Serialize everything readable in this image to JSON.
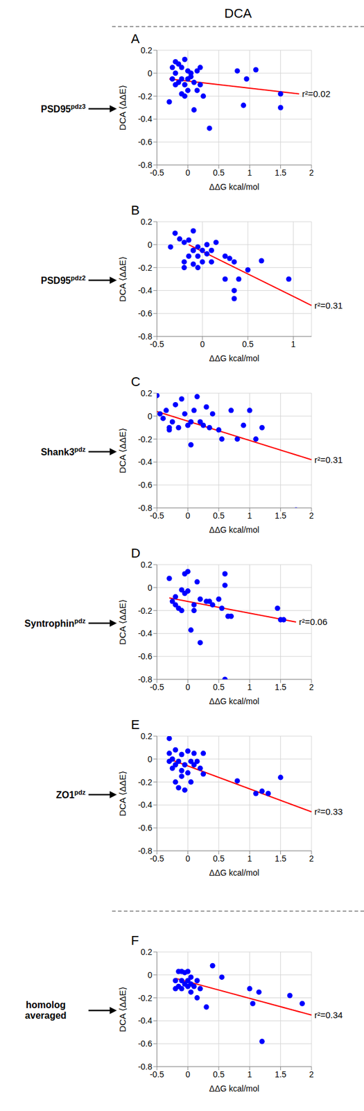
{
  "header": "DCA",
  "chart_data": [
    {
      "type": "scatter",
      "panel": "A",
      "row_label": "PSD95",
      "row_label_sup": "pdz3",
      "x_label": "ΔΔG kcal/mol",
      "y_label": "DCA ⟨ΔΔE⟩",
      "xlim": [
        -0.5,
        2
      ],
      "xticks": [
        -0.5,
        0,
        0.5,
        1,
        1.5,
        2
      ],
      "ylim": [
        -0.8,
        0.2
      ],
      "yticks": [
        -0.8,
        -0.6,
        -0.4,
        -0.2,
        0,
        0.2
      ],
      "grid": true,
      "marker": "circle",
      "color": "#0000ff",
      "x": [
        -0.3,
        -0.25,
        -0.2,
        -0.15,
        -0.1,
        -0.1,
        -0.05,
        0,
        -0.2,
        -0.15,
        -0.05,
        0,
        -0.1,
        0.05,
        0.1,
        0.15,
        0.2,
        0.2,
        0.1,
        0.35,
        0.8,
        0.9,
        0.95,
        1.1,
        1.5,
        1.5,
        -0.25,
        -0.05,
        0,
        0.15,
        0.25,
        -0.2,
        0.05
      ],
      "y": [
        -0.25,
        0.05,
        0,
        0.08,
        0.05,
        -0.05,
        0.12,
        0.02,
        -0.1,
        -0.08,
        -0.1,
        -0.15,
        -0.18,
        -0.03,
        -0.08,
        0.02,
        0.05,
        -0.1,
        -0.32,
        -0.48,
        0.02,
        -0.28,
        -0.05,
        0.03,
        -0.18,
        -0.3,
        -0.05,
        -0.2,
        -0.05,
        -0.15,
        -0.2,
        0.1,
        0
      ],
      "fit": {
        "x": [
          -0.3,
          1.8
        ],
        "y": [
          -0.05,
          -0.18
        ],
        "color": "#ff0000"
      },
      "annotation": "r²=0.02"
    },
    {
      "type": "scatter",
      "panel": "B",
      "row_label": "PSD95",
      "row_label_sup": "pdz2",
      "x_label": "ΔΔG kcal/mol",
      "y_label": "DCA ⟨ΔΔE⟩",
      "xlim": [
        -0.5,
        1.2
      ],
      "xticks": [
        -0.5,
        0,
        0.5,
        1
      ],
      "ylim": [
        -0.8,
        0.2
      ],
      "yticks": [
        -0.8,
        -0.6,
        -0.4,
        -0.2,
        0,
        0.2
      ],
      "grid": true,
      "marker": "circle",
      "color": "#0000ff",
      "x": [
        -0.35,
        -0.3,
        -0.25,
        -0.2,
        -0.15,
        -0.1,
        -0.1,
        -0.15,
        -0.2,
        -0.2,
        -0.1,
        -0.05,
        -0.05,
        0,
        0,
        0.05,
        0.1,
        0.1,
        0.15,
        -0.1,
        0.25,
        0.3,
        0.35,
        0.25,
        0.35,
        0.4,
        0.35,
        0.5,
        0.65,
        0.95,
        -0.05,
        0.05
      ],
      "y": [
        -0.02,
        0.1,
        0.05,
        0.02,
        0.04,
        0.12,
        -0.05,
        -0.1,
        -0.2,
        -0.15,
        -0.17,
        -0.1,
        -0.2,
        -0.05,
        -0.15,
        -0.08,
        -0.05,
        -0.15,
        0.02,
        -0.05,
        -0.1,
        -0.12,
        -0.15,
        -0.3,
        -0.4,
        -0.3,
        -0.47,
        -0.22,
        -0.14,
        -0.3,
        -0.02,
        0
      ],
      "fit": {
        "x": [
          -0.15,
          1.2
        ],
        "y": [
          0,
          -0.53
        ],
        "color": "#ff0000"
      },
      "annotation": "r²=0.31"
    },
    {
      "type": "scatter",
      "panel": "C",
      "row_label": "Shank3",
      "row_label_sup": "pdz",
      "x_label": "ΔΔG kcal/mol",
      "y_label": "DCA ⟨ΔΔE⟩",
      "xlim": [
        -0.5,
        2
      ],
      "xticks": [
        -0.5,
        0,
        0.5,
        1,
        1.5,
        2
      ],
      "ylim": [
        -0.8,
        0.2
      ],
      "yticks": [
        -0.8,
        -0.6,
        -0.4,
        -0.2,
        0,
        0.2
      ],
      "grid": true,
      "marker": "circle",
      "color": "#0000ff",
      "x": [
        -0.5,
        -0.45,
        -0.35,
        -0.3,
        -0.25,
        -0.2,
        -0.15,
        -0.1,
        -0.05,
        0,
        0.05,
        0.1,
        0.15,
        0.2,
        0.25,
        0.35,
        0.4,
        0.5,
        0.55,
        0.7,
        0.8,
        0.9,
        1.0,
        1.1,
        1.2,
        1.75,
        -0.3,
        0.3,
        -0.4,
        0.05
      ],
      "y": [
        0.18,
        0.02,
        0.05,
        -0.1,
        -0.05,
        0.1,
        -0.1,
        0.15,
        0.02,
        -0.08,
        -0.25,
        0.05,
        0.17,
        -0.05,
        -0.08,
        -0.1,
        0.02,
        -0.12,
        -0.2,
        0.05,
        -0.2,
        -0.08,
        0.05,
        -0.2,
        -0.1,
        -0.82,
        -0.12,
        0.08,
        -0.02,
        -0.05
      ],
      "fit": {
        "x": [
          -0.5,
          2
        ],
        "y": [
          0.04,
          -0.38
        ],
        "color": "#ff0000"
      },
      "annotation": "r²=0.31"
    },
    {
      "type": "scatter",
      "panel": "D",
      "row_label": "Syntrophin",
      "row_label_sup": "pdz",
      "x_label": "ΔΔG kcal/mol",
      "y_label": "DCA ⟨ΔΔE⟩",
      "xlim": [
        -0.5,
        2
      ],
      "xticks": [
        -0.5,
        0,
        0.5,
        1,
        1.5,
        2
      ],
      "ylim": [
        -0.8,
        0.2
      ],
      "yticks": [
        -0.8,
        -0.6,
        -0.4,
        -0.2,
        0,
        0.2
      ],
      "grid": true,
      "marker": "circle",
      "color": "#0000ff",
      "x": [
        -0.3,
        -0.25,
        -0.2,
        -0.15,
        -0.1,
        -0.05,
        0,
        -0.05,
        0,
        0.05,
        0.1,
        0.15,
        0.2,
        0.2,
        0.3,
        0.4,
        0.5,
        0.55,
        0.6,
        0.6,
        0.65,
        0.6,
        0.7,
        1.45,
        1.5,
        1.55,
        -0.1,
        0.1,
        0.35,
        -0.2
      ],
      "y": [
        0.08,
        -0.12,
        -0.15,
        -0.18,
        -0.2,
        0.12,
        0.14,
        -0.05,
        -0.03,
        -0.37,
        -0.15,
        0.05,
        -0.48,
        -0.1,
        -0.12,
        -0.15,
        -0.1,
        -0.18,
        0.12,
        -0.8,
        -0.25,
        0.02,
        -0.25,
        -0.18,
        -0.28,
        -0.28,
        -0.02,
        -0.2,
        -0.12,
        -0.08
      ],
      "fit": {
        "x": [
          -0.3,
          1.75
        ],
        "y": [
          -0.09,
          -0.3
        ],
        "color": "#ff0000"
      },
      "annotation": "r²=0.06"
    },
    {
      "type": "scatter",
      "panel": "E",
      "row_label": "ZO1",
      "row_label_sup": "pdz",
      "x_label": "ΔΔG kcal/mol",
      "y_label": "DCA ⟨ΔΔE⟩",
      "xlim": [
        -0.5,
        2
      ],
      "xticks": [
        -0.5,
        0,
        0.5,
        1,
        1.5,
        2
      ],
      "ylim": [
        -0.8,
        0.2
      ],
      "yticks": [
        -0.8,
        -0.6,
        -0.4,
        -0.2,
        0,
        0.2
      ],
      "grid": true,
      "marker": "circle",
      "color": "#0000ff",
      "x": [
        -0.3,
        -0.3,
        -0.25,
        -0.2,
        -0.2,
        -0.15,
        -0.1,
        -0.1,
        -0.05,
        0,
        0.05,
        0.1,
        0.15,
        0.2,
        0.25,
        0,
        -0.2,
        -0.15,
        -0.05,
        0.05,
        -0.25,
        -0.1,
        0.1,
        0.8,
        1.1,
        1.2,
        1.3,
        1.5,
        -0.3,
        0.25
      ],
      "y": [
        0.18,
        0.05,
        0,
        -0.05,
        0.08,
        -0.02,
        0.04,
        -0.1,
        -0.05,
        0.07,
        -0.02,
        0.05,
        -0.02,
        -0.08,
        -0.13,
        -0.12,
        -0.2,
        -0.25,
        -0.27,
        -0.2,
        -0.08,
        -0.15,
        -0.05,
        -0.19,
        -0.3,
        -0.28,
        -0.3,
        -0.16,
        -0.02,
        0.05
      ],
      "fit": {
        "x": [
          -0.3,
          2
        ],
        "y": [
          0,
          -0.46
        ],
        "color": "#ff0000"
      },
      "annotation": "r²=0.33"
    },
    {
      "type": "scatter",
      "panel": "F",
      "row_label": "homolog averaged",
      "x_label": "ΔΔG kcal/mol",
      "y_label": "DCA ⟨ΔΔE⟩",
      "xlim": [
        -0.5,
        2
      ],
      "xticks": [
        -0.5,
        0,
        0.5,
        1,
        1.5,
        2
      ],
      "ylim": [
        -0.8,
        0.2
      ],
      "yticks": [
        -0.8,
        -0.6,
        -0.4,
        -0.2,
        0,
        0.2
      ],
      "grid": true,
      "marker": "circle",
      "color": "#0000ff",
      "x": [
        -0.2,
        -0.15,
        -0.1,
        -0.05,
        0,
        0.05,
        -0.15,
        -0.1,
        -0.05,
        0,
        0.05,
        0.1,
        0.15,
        0.15,
        0.2,
        -0.2,
        -0.1,
        0,
        0.3,
        0.4,
        0.55,
        1.0,
        1.05,
        1.15,
        1.2,
        1.65,
        1.85,
        0.05
      ],
      "y": [
        -0.05,
        0.03,
        0.03,
        0.02,
        0.03,
        -0.02,
        -0.1,
        -0.12,
        -0.08,
        -0.1,
        -0.08,
        -0.1,
        -0.05,
        -0.2,
        -0.12,
        -0.12,
        -0.05,
        -0.05,
        -0.28,
        0.08,
        -0.02,
        -0.12,
        -0.25,
        -0.15,
        -0.58,
        -0.18,
        -0.25,
        -0.15
      ],
      "fit": {
        "x": [
          -0.2,
          2
        ],
        "y": [
          -0.03,
          -0.35
        ],
        "color": "#ff0000"
      },
      "annotation": "r²=0.34"
    }
  ]
}
